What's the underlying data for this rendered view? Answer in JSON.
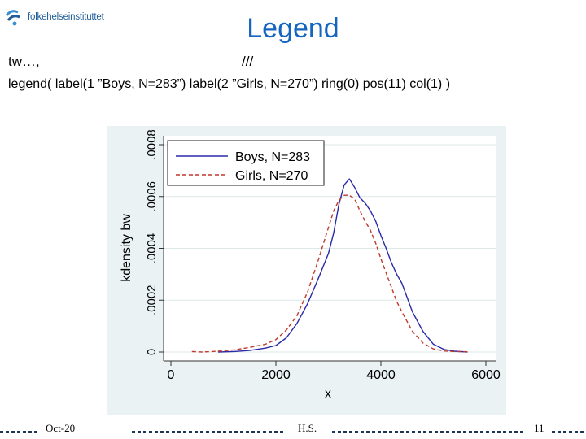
{
  "header": {
    "logo_text": "folkehelseinstituttet",
    "title": "Legend",
    "command_start": "tw…,",
    "command_cont": "///",
    "legend_command": "legend( label(1 ”Boys,  N=283”)  label(2 ”Girls,   N=270”) ring(0)  pos(11)  col(1) )"
  },
  "footer": {
    "date": "Oct-20",
    "author": "H.S.",
    "page": "11"
  },
  "colors": {
    "title": "#1565c0",
    "boys": "#2a2aa8",
    "girls": "#c0392b",
    "plot_bg": "#eaf2f3"
  },
  "chart_data": {
    "type": "line",
    "xlabel": "x",
    "ylabel": "kdensity bw",
    "xlim": [
      0,
      6000
    ],
    "ylim": [
      0,
      0.0008
    ],
    "xticks": [
      0,
      2000,
      4000,
      6000
    ],
    "xtick_labels": [
      "0",
      "2000",
      "4000",
      "6000"
    ],
    "yticks": [
      0,
      0.0002,
      0.0004,
      0.0006,
      0.0008
    ],
    "ytick_labels": [
      "0",
      ".0002",
      ".0004",
      ".0006",
      ".0008"
    ],
    "grid": true,
    "legend_position": "top-left",
    "series": [
      {
        "name": "Boys, N=283",
        "style": "solid",
        "x": [
          900,
          1200,
          1500,
          1800,
          2000,
          2200,
          2400,
          2600,
          2800,
          3000,
          3100,
          3200,
          3300,
          3400,
          3500,
          3600,
          3700,
          3800,
          3900,
          4000,
          4100,
          4200,
          4300,
          4400,
          4500,
          4600,
          4800,
          5000,
          5200,
          5400,
          5650
        ],
        "y": [
          0,
          2e-06,
          6e-06,
          1.5e-05,
          2.5e-05,
          5.5e-05,
          0.00011,
          0.000185,
          0.00028,
          0.00038,
          0.00046,
          0.00057,
          0.000645,
          0.000668,
          0.000635,
          0.000595,
          0.000575,
          0.000545,
          0.000505,
          0.00045,
          0.0004,
          0.000345,
          0.0003,
          0.000265,
          0.00021,
          0.000155,
          8e-05,
          3e-05,
          1e-05,
          3e-06,
          0
        ]
      },
      {
        "name": "Girls, N=270",
        "style": "dashed",
        "x": [
          400,
          600,
          900,
          1200,
          1500,
          1800,
          2000,
          2200,
          2400,
          2600,
          2800,
          3000,
          3100,
          3200,
          3300,
          3400,
          3500,
          3600,
          3700,
          3800,
          3900,
          4000,
          4100,
          4200,
          4300,
          4400,
          4600,
          4800,
          5000,
          5200,
          5400,
          5700
        ],
        "y": [
          2e-06,
          0,
          3e-06,
          8e-06,
          1.8e-05,
          3e-05,
          4.8e-05,
          8.5e-05,
          0.00014,
          0.00023,
          0.00035,
          0.00048,
          0.000545,
          0.000585,
          0.000605,
          0.000605,
          0.00059,
          0.000545,
          0.000505,
          0.00047,
          0.00042,
          0.00036,
          0.000305,
          0.00025,
          0.000195,
          0.000155,
          8e-05,
          3.5e-05,
          1.2e-05,
          4e-06,
          2e-06,
          1e-06
        ]
      }
    ]
  }
}
